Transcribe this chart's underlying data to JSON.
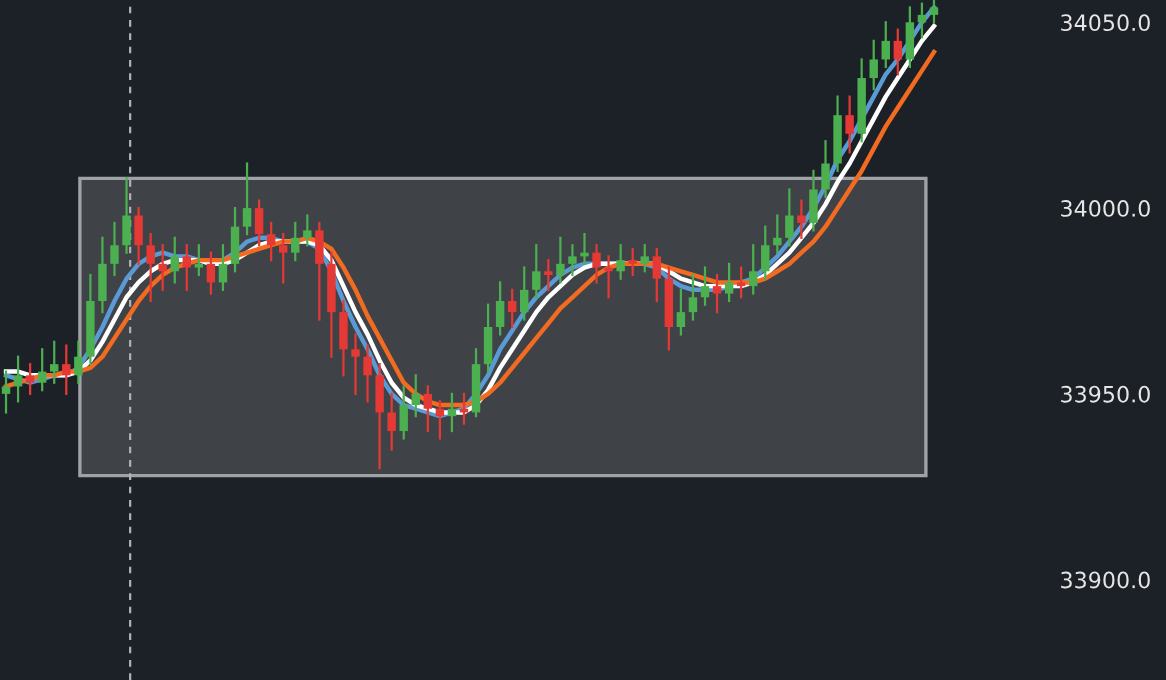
{
  "chart_data": {
    "type": "candlestick",
    "categories": [
      null,
      null,
      null,
      null,
      null,
      null,
      null,
      null,
      null,
      null,
      null,
      null,
      null,
      null,
      null,
      null,
      null,
      null,
      null,
      null,
      null,
      null,
      null,
      null,
      null,
      null,
      null,
      null,
      null,
      null,
      null,
      null,
      null,
      null,
      null,
      null,
      null,
      null,
      null,
      null,
      null,
      null,
      null,
      null,
      null,
      null,
      null,
      null,
      null,
      null,
      null,
      null,
      null,
      null,
      null,
      null,
      null,
      null,
      null,
      null,
      null,
      null,
      null,
      null,
      null,
      null,
      null,
      null,
      null,
      null,
      null,
      null,
      null,
      null,
      null,
      null,
      null,
      null
    ],
    "ohlc": [
      [
        33950,
        33956,
        33945,
        33952
      ],
      [
        33952,
        33960,
        33948,
        33955
      ],
      [
        33955,
        33958,
        33950,
        33953
      ],
      [
        33953,
        33962,
        33951,
        33956
      ],
      [
        33956,
        33964,
        33953,
        33958
      ],
      [
        33958,
        33963,
        33950,
        33955
      ],
      [
        33955,
        33964,
        33953,
        33960
      ],
      [
        33960,
        33982,
        33958,
        33975
      ],
      [
        33975,
        33992,
        33972,
        33985
      ],
      [
        33985,
        33996,
        33982,
        33990
      ],
      [
        33990,
        34008,
        33988,
        33998
      ],
      [
        33998,
        34000,
        33985,
        33990
      ],
      [
        33990,
        33993,
        33975,
        33985
      ],
      [
        33985,
        33990,
        33978,
        33983
      ],
      [
        33983,
        33992,
        33980,
        33987
      ],
      [
        33987,
        33990,
        33978,
        33984
      ],
      [
        33984,
        33990,
        33982,
        33985
      ],
      [
        33985,
        33988,
        33977,
        33980
      ],
      [
        33980,
        33990,
        33978,
        33985
      ],
      [
        33985,
        34000,
        33983,
        33995
      ],
      [
        33995,
        34012,
        33993,
        34000
      ],
      [
        34000,
        34002,
        33990,
        33993
      ],
      [
        33993,
        33996,
        33986,
        33990
      ],
      [
        33990,
        33993,
        33980,
        33988
      ],
      [
        33988,
        33996,
        33986,
        33992
      ],
      [
        33992,
        33998,
        33990,
        33994
      ],
      [
        33994,
        33996,
        33970,
        33985
      ],
      [
        33985,
        33988,
        33960,
        33972
      ],
      [
        33972,
        33975,
        33955,
        33962
      ],
      [
        33962,
        33966,
        33950,
        33960
      ],
      [
        33960,
        33963,
        33948,
        33955
      ],
      [
        33955,
        33958,
        33930,
        33945
      ],
      [
        33945,
        33950,
        33935,
        33940
      ],
      [
        33940,
        33952,
        33938,
        33947
      ],
      [
        33947,
        33955,
        33944,
        33950
      ],
      [
        33950,
        33952,
        33940,
        33946
      ],
      [
        33946,
        33948,
        33938,
        33944
      ],
      [
        33944,
        33950,
        33940,
        33946
      ],
      [
        33946,
        33950,
        33942,
        33945
      ],
      [
        33945,
        33962,
        33944,
        33958
      ],
      [
        33958,
        33974,
        33956,
        33968
      ],
      [
        33968,
        33980,
        33966,
        33975
      ],
      [
        33975,
        33978,
        33968,
        33972
      ],
      [
        33972,
        33984,
        33970,
        33978
      ],
      [
        33978,
        33990,
        33976,
        33983
      ],
      [
        33983,
        33986,
        33978,
        33982
      ],
      [
        33982,
        33992,
        33980,
        33985
      ],
      [
        33985,
        33990,
        33982,
        33987
      ],
      [
        33987,
        33993,
        33985,
        33988
      ],
      [
        33988,
        33990,
        33980,
        33984
      ],
      [
        33984,
        33987,
        33976,
        33983
      ],
      [
        33983,
        33990,
        33981,
        33986
      ],
      [
        33986,
        33989,
        33982,
        33985
      ],
      [
        33985,
        33990,
        33983,
        33987
      ],
      [
        33987,
        33989,
        33975,
        33981
      ],
      [
        33981,
        33984,
        33962,
        33968
      ],
      [
        33968,
        33978,
        33966,
        33972
      ],
      [
        33972,
        33982,
        33970,
        33976
      ],
      [
        33976,
        33984,
        33974,
        33979
      ],
      [
        33979,
        33982,
        33972,
        33977
      ],
      [
        33977,
        33985,
        33975,
        33980
      ],
      [
        33980,
        33984,
        33976,
        33979
      ],
      [
        33979,
        33990,
        33977,
        33983
      ],
      [
        33983,
        33995,
        33981,
        33990
      ],
      [
        33990,
        33998,
        33988,
        33992
      ],
      [
        33992,
        34005,
        33990,
        33998
      ],
      [
        33998,
        34002,
        33992,
        33996
      ],
      [
        33996,
        34010,
        33994,
        34005
      ],
      [
        34005,
        34018,
        34003,
        34012
      ],
      [
        34012,
        34030,
        34010,
        34025
      ],
      [
        34025,
        34030,
        34015,
        34020
      ],
      [
        34020,
        34040,
        34018,
        34035
      ],
      [
        34035,
        34045,
        34032,
        34040
      ],
      [
        34040,
        34050,
        34038,
        34045
      ],
      [
        34045,
        34048,
        34036,
        34040
      ],
      [
        34040,
        34054,
        34038,
        34050
      ],
      [
        34050,
        34055,
        34046,
        34052
      ],
      [
        34052,
        34056,
        34050,
        34054
      ]
    ],
    "colors": [
      "#4caf50",
      "#4caf50",
      "#e53935",
      "#4caf50",
      "#4caf50",
      "#e53935",
      "#4caf50",
      "#4caf50",
      "#4caf50",
      "#4caf50",
      "#4caf50",
      "#e53935",
      "#e53935",
      "#e53935",
      "#4caf50",
      "#e53935",
      "#4caf50",
      "#e53935",
      "#4caf50",
      "#4caf50",
      "#4caf50",
      "#e53935",
      "#e53935",
      "#e53935",
      "#4caf50",
      "#4caf50",
      "#e53935",
      "#e53935",
      "#e53935",
      "#e53935",
      "#e53935",
      "#e53935",
      "#e53935",
      "#4caf50",
      "#4caf50",
      "#e53935",
      "#e53935",
      "#4caf50",
      "#e53935",
      "#4caf50",
      "#4caf50",
      "#4caf50",
      "#e53935",
      "#4caf50",
      "#4caf50",
      "#e53935",
      "#4caf50",
      "#4caf50",
      "#4caf50",
      "#e53935",
      "#e53935",
      "#4caf50",
      "#e53935",
      "#4caf50",
      "#e53935",
      "#e53935",
      "#4caf50",
      "#4caf50",
      "#4caf50",
      "#e53935",
      "#4caf50",
      "#e53935",
      "#4caf50",
      "#4caf50",
      "#4caf50",
      "#4caf50",
      "#e53935",
      "#4caf50",
      "#4caf50",
      "#4caf50",
      "#e53935",
      "#4caf50",
      "#4caf50",
      "#4caf50",
      "#e53935",
      "#4caf50",
      "#4caf50",
      "#4caf50"
    ],
    "series": [
      {
        "type": "line",
        "color": "#5b9bd5",
        "values": [
          33955,
          33954,
          33953,
          33954,
          33955,
          33955,
          33957,
          33962,
          33968,
          33975,
          33981,
          33985,
          33987,
          33988,
          33987,
          33987,
          33986,
          33985,
          33986,
          33988,
          33991,
          33992,
          33992,
          33991,
          33991,
          33991,
          33989,
          33983,
          33975,
          33968,
          33962,
          33955,
          33950,
          33947,
          33946,
          33945,
          33944,
          33945,
          33946,
          33950,
          33955,
          33962,
          33967,
          33972,
          33976,
          33979,
          33982,
          33984,
          33985,
          33985,
          33985,
          33985,
          33985,
          33985,
          33984,
          33981,
          33979,
          33978,
          33978,
          33978,
          33979,
          33980,
          33981,
          33984,
          33987,
          33991,
          33995,
          34000,
          34006,
          34013,
          34018,
          34024,
          34030,
          34036,
          34040,
          34045,
          34050,
          34054
        ]
      },
      {
        "type": "line",
        "color": "#ffffff",
        "values": [
          33956,
          33956,
          33955,
          33955,
          33955,
          33955,
          33956,
          33959,
          33964,
          33970,
          33976,
          33980,
          33983,
          33985,
          33986,
          33986,
          33986,
          33985,
          33985,
          33986,
          33988,
          33990,
          33991,
          33991,
          33991,
          33991,
          33990,
          33986,
          33979,
          33972,
          33966,
          33959,
          33953,
          33949,
          33947,
          33946,
          33945,
          33945,
          33945,
          33947,
          33951,
          33957,
          33962,
          33967,
          33972,
          33976,
          33979,
          33982,
          33984,
          33985,
          33985,
          33985,
          33985,
          33985,
          33985,
          33983,
          33981,
          33980,
          33979,
          33979,
          33979,
          33979,
          33980,
          33982,
          33985,
          33988,
          33992,
          33996,
          34001,
          34007,
          34012,
          34018,
          34024,
          34030,
          34035,
          34040,
          34045,
          34049
        ]
      },
      {
        "type": "line",
        "color": "#f26b21",
        "values": [
          33952,
          33953,
          33954,
          33955,
          33955,
          33956,
          33956,
          33957,
          33960,
          33965,
          33970,
          33975,
          33979,
          33982,
          33984,
          33985,
          33986,
          33986,
          33986,
          33987,
          33988,
          33989,
          33990,
          33991,
          33991,
          33992,
          33991,
          33989,
          33984,
          33978,
          33971,
          33965,
          33959,
          33953,
          33950,
          33948,
          33947,
          33947,
          33947,
          33948,
          33950,
          33953,
          33957,
          33961,
          33965,
          33969,
          33973,
          33976,
          33979,
          33982,
          33984,
          33985,
          33985,
          33985,
          33985,
          33984,
          33983,
          33982,
          33981,
          33980,
          33980,
          33980,
          33980,
          33981,
          33983,
          33985,
          33988,
          33991,
          33995,
          34000,
          34005,
          34010,
          34016,
          34022,
          34027,
          34032,
          34037,
          34042
        ]
      }
    ],
    "ylim": [
      33873,
      34056
    ],
    "yticks": [
      {
        "value": 33900,
        "label": "33900.0"
      },
      {
        "value": 33950,
        "label": "33950.0"
      },
      {
        "value": 34000,
        "label": "34000.0"
      },
      {
        "value": 34050,
        "label": "34050.0"
      }
    ],
    "bands": [
      {
        "axis": "y",
        "from": 33928,
        "to": 34008,
        "color": "#3f4347"
      }
    ],
    "grid": false,
    "tick_labels": "y"
  }
}
